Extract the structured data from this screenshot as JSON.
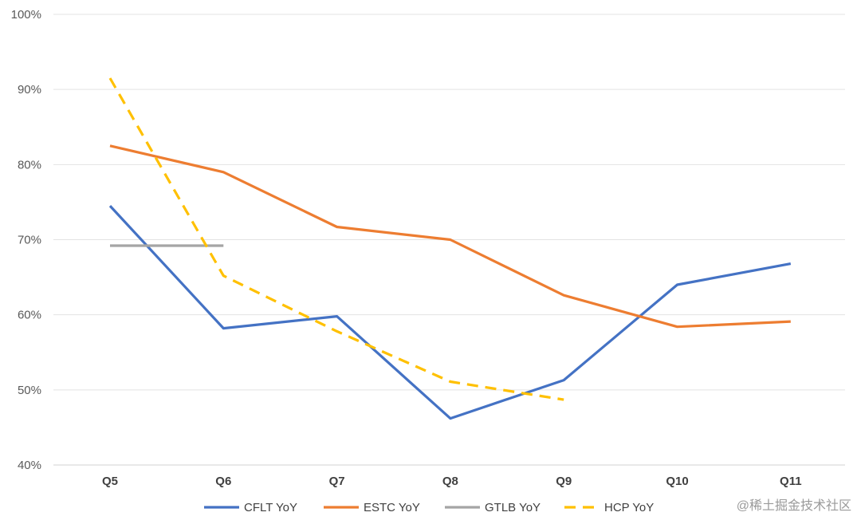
{
  "chart_data": {
    "type": "line",
    "title": "",
    "xlabel": "",
    "ylabel": "",
    "categories": [
      "Q5",
      "Q6",
      "Q7",
      "Q8",
      "Q9",
      "Q10",
      "Q11"
    ],
    "ylim": [
      40,
      100
    ],
    "yticks": [
      40,
      50,
      60,
      70,
      80,
      90,
      100
    ],
    "ytick_labels": [
      "40%",
      "50%",
      "60%",
      "70%",
      "80%",
      "90%",
      "100%"
    ],
    "grid": true,
    "legend_position": "bottom",
    "series": [
      {
        "name": "CFLT YoY",
        "color": "#4472C4",
        "dashed": false,
        "values": [
          74.5,
          58.2,
          59.8,
          46.2,
          51.3,
          64.0,
          66.8
        ]
      },
      {
        "name": "ESTC YoY",
        "color": "#ED7D31",
        "dashed": false,
        "values": [
          82.5,
          79.0,
          71.7,
          70.0,
          62.6,
          58.4,
          59.1
        ]
      },
      {
        "name": "GTLB YoY",
        "color": "#A5A5A5",
        "dashed": false,
        "values": [
          69.2,
          69.2,
          null,
          null,
          null,
          null,
          null
        ]
      },
      {
        "name": "HCP YoY",
        "color": "#FFC000",
        "dashed": true,
        "values": [
          91.5,
          65.2,
          57.8,
          51.1,
          48.7,
          null,
          null
        ]
      }
    ]
  },
  "watermark": "@稀土掘金技术社区"
}
